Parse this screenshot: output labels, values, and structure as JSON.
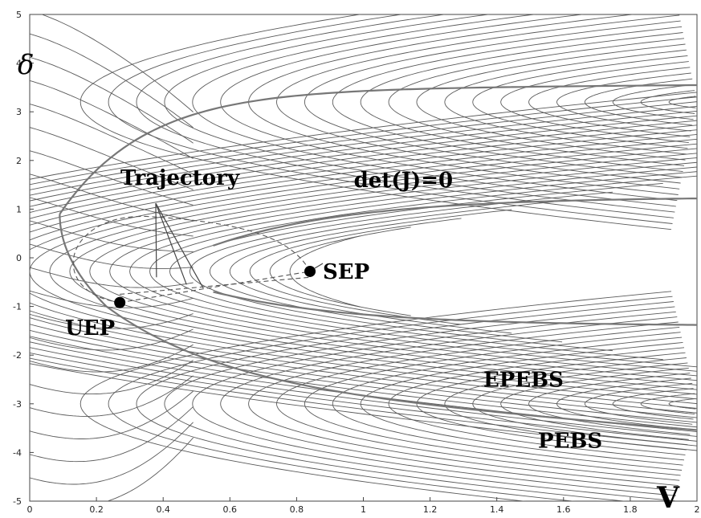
{
  "chart_data": {
    "type": "contour",
    "xlabel": "V",
    "ylabel": "δ",
    "xlim": [
      0,
      2
    ],
    "ylim": [
      -5,
      5
    ],
    "x_ticks": [
      "0",
      "0.2",
      "0.4",
      "0.6",
      "0.8",
      "1",
      "1.2",
      "1.4",
      "1.6",
      "1.8",
      "2"
    ],
    "y_ticks": [
      "5",
      "4",
      "3",
      "2",
      "1",
      "0",
      "-1",
      "-2",
      "-3",
      "-4",
      "-5"
    ],
    "grid": false,
    "points": [
      {
        "label": "SEP",
        "x": 0.84,
        "y": -0.28
      },
      {
        "label": "UEP",
        "x": 0.27,
        "y": -0.92
      }
    ],
    "annotations": [
      {
        "text": "Trajectory",
        "x": 0.45,
        "y": 1.5
      },
      {
        "text": "det(J)=0",
        "x": 1.12,
        "y": 1.45
      },
      {
        "text": "EPEBS",
        "x": 1.48,
        "y": -2.65
      },
      {
        "text": "PEBS",
        "x": 1.62,
        "y": -3.9
      }
    ]
  }
}
